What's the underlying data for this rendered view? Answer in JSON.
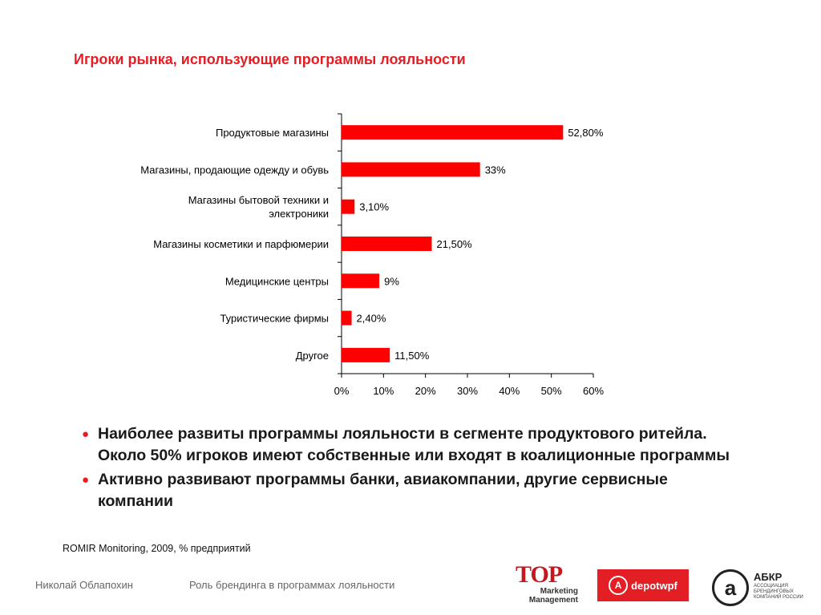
{
  "slide": {
    "title": "Игроки рынка, использующие программы лояльности",
    "bullets": [
      "Наиболее развиты программы лояльности в сегменте продуктового ритейла. Около 50% игроков имеют собственные или входят в коалиционные программы",
      "Активно развивают программы банки, авиакомпании, другие сервисные компании"
    ],
    "bullet_glyph": "●",
    "source": "ROMIR Monitoring, 2009, % предприятий"
  },
  "footer": {
    "author": "Николай Облапохин",
    "topic": "Роль брендинга в программах лояльности",
    "logo_top": {
      "big": "TOP",
      "line1": "Marketing",
      "line2": "Management"
    },
    "logo_depot": {
      "mark": "A",
      "text": "depotwpf"
    },
    "logo_abkr": {
      "name": "АБКР",
      "sub": "АССОЦИАЦИЯ БРЕНДИНГОВЫХ КОМПАНИЙ РОССИИ"
    }
  },
  "colors": {
    "accent": "#e31e24",
    "bar": "#ff0000"
  },
  "chart_data": {
    "type": "bar",
    "orientation": "horizontal",
    "categories": [
      [
        "Продуктовые магазины"
      ],
      [
        "Магазины, продающие одежду и обувь"
      ],
      [
        "Магазины бытовой техники и",
        "электроники"
      ],
      [
        "Магазины косметики и парфюмерии"
      ],
      [
        "Медицинские центры"
      ],
      [
        "Туристические фирмы"
      ],
      [
        "Другое"
      ]
    ],
    "values": [
      52.8,
      33,
      3.1,
      21.5,
      9,
      2.4,
      11.5
    ],
    "data_labels": [
      "52,80%",
      "33%",
      "3,10%",
      "21,50%",
      "9%",
      "2,40%",
      "11,50%"
    ],
    "x_ticks": [
      0,
      10,
      20,
      30,
      40,
      50,
      60
    ],
    "x_tick_labels": [
      "0%",
      "10%",
      "20%",
      "30%",
      "40%",
      "50%",
      "60%"
    ],
    "xlim": [
      0,
      60
    ],
    "legend": "none",
    "grid": false
  }
}
